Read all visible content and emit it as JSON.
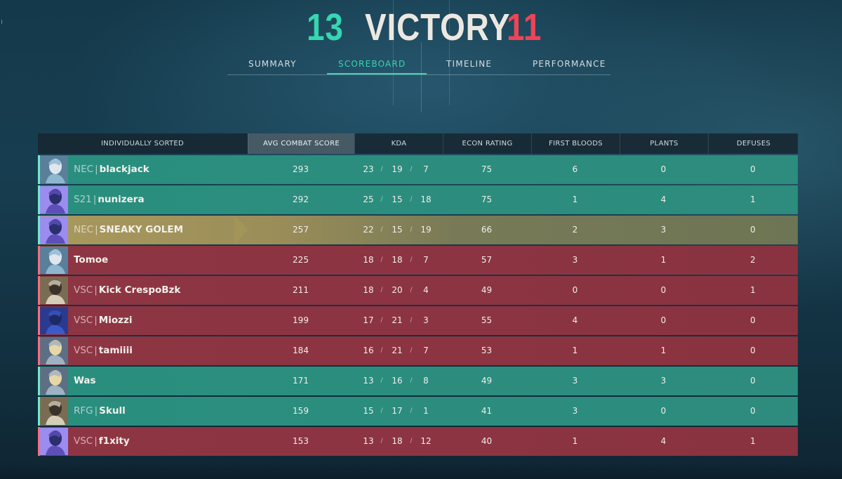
{
  "header": {
    "team_score": "13",
    "result": "VICTORY",
    "enemy_score": "11"
  },
  "tabs": [
    {
      "label": "SUMMARY",
      "active": false
    },
    {
      "label": "SCOREBOARD",
      "active": true
    },
    {
      "label": "TIMELINE",
      "active": false
    },
    {
      "label": "PERFORMANCE",
      "active": false
    }
  ],
  "columns": {
    "sort": "INDIVIDUALLY SORTED",
    "acs": "AVG COMBAT SCORE",
    "kda": "KDA",
    "econ": "ECON RATING",
    "first_bloods": "FIRST BLOODS",
    "plants": "PLANTS",
    "defuses": "DEFUSES"
  },
  "colors": {
    "win": "#2a8e7f",
    "loss": "#8e3543",
    "self": "#a9995e",
    "accent": "#35d6b0",
    "enemy": "#ef4456"
  },
  "players": [
    {
      "team": "win",
      "tag": "NEC",
      "name": "blackjack",
      "acs": "293",
      "k": "23",
      "d": "19",
      "a": "7",
      "econ": "75",
      "fb": "6",
      "plants": "0",
      "defuses": "0",
      "agent": "jett-portrait"
    },
    {
      "team": "win",
      "tag": "S21",
      "name": "nunizera",
      "acs": "292",
      "k": "25",
      "d": "15",
      "a": "18",
      "econ": "75",
      "fb": "1",
      "plants": "4",
      "defuses": "1",
      "agent": "omen-portrait"
    },
    {
      "team": "self",
      "tag": "NEC",
      "name": "SNEAKY GOLEM",
      "acs": "257",
      "k": "22",
      "d": "15",
      "a": "19",
      "econ": "66",
      "fb": "2",
      "plants": "3",
      "defuses": "0",
      "agent": "omen-portrait"
    },
    {
      "team": "loss",
      "tag": "",
      "name": "Tomoe",
      "acs": "225",
      "k": "18",
      "d": "18",
      "a": "7",
      "econ": "57",
      "fb": "3",
      "plants": "1",
      "defuses": "2",
      "agent": "jett-portrait"
    },
    {
      "team": "loss",
      "tag": "VSC",
      "name": "Kick CrespoBzk",
      "acs": "211",
      "k": "18",
      "d": "20",
      "a": "4",
      "econ": "49",
      "fb": "0",
      "plants": "0",
      "defuses": "1",
      "agent": "cypher-portrait"
    },
    {
      "team": "loss",
      "tag": "VSC",
      "name": "Miozzi",
      "acs": "199",
      "k": "17",
      "d": "21",
      "a": "3",
      "econ": "55",
      "fb": "4",
      "plants": "0",
      "defuses": "0",
      "agent": "yoru-portrait"
    },
    {
      "team": "loss",
      "tag": "VSC",
      "name": "tamiiii",
      "acs": "184",
      "k": "16",
      "d": "21",
      "a": "7",
      "econ": "53",
      "fb": "1",
      "plants": "1",
      "defuses": "0",
      "agent": "sova-portrait"
    },
    {
      "team": "win",
      "tag": "",
      "name": "Was",
      "acs": "171",
      "k": "13",
      "d": "16",
      "a": "8",
      "econ": "49",
      "fb": "3",
      "plants": "3",
      "defuses": "0",
      "agent": "sova-portrait"
    },
    {
      "team": "win",
      "tag": "RFG",
      "name": "Skull",
      "acs": "159",
      "k": "15",
      "d": "17",
      "a": "1",
      "econ": "41",
      "fb": "3",
      "plants": "0",
      "defuses": "0",
      "agent": "cypher-portrait"
    },
    {
      "team": "loss",
      "tag": "VSC",
      "name": "f1xity",
      "acs": "153",
      "k": "13",
      "d": "18",
      "a": "12",
      "econ": "40",
      "fb": "1",
      "plants": "4",
      "defuses": "1",
      "agent": "omen-portrait"
    }
  ]
}
